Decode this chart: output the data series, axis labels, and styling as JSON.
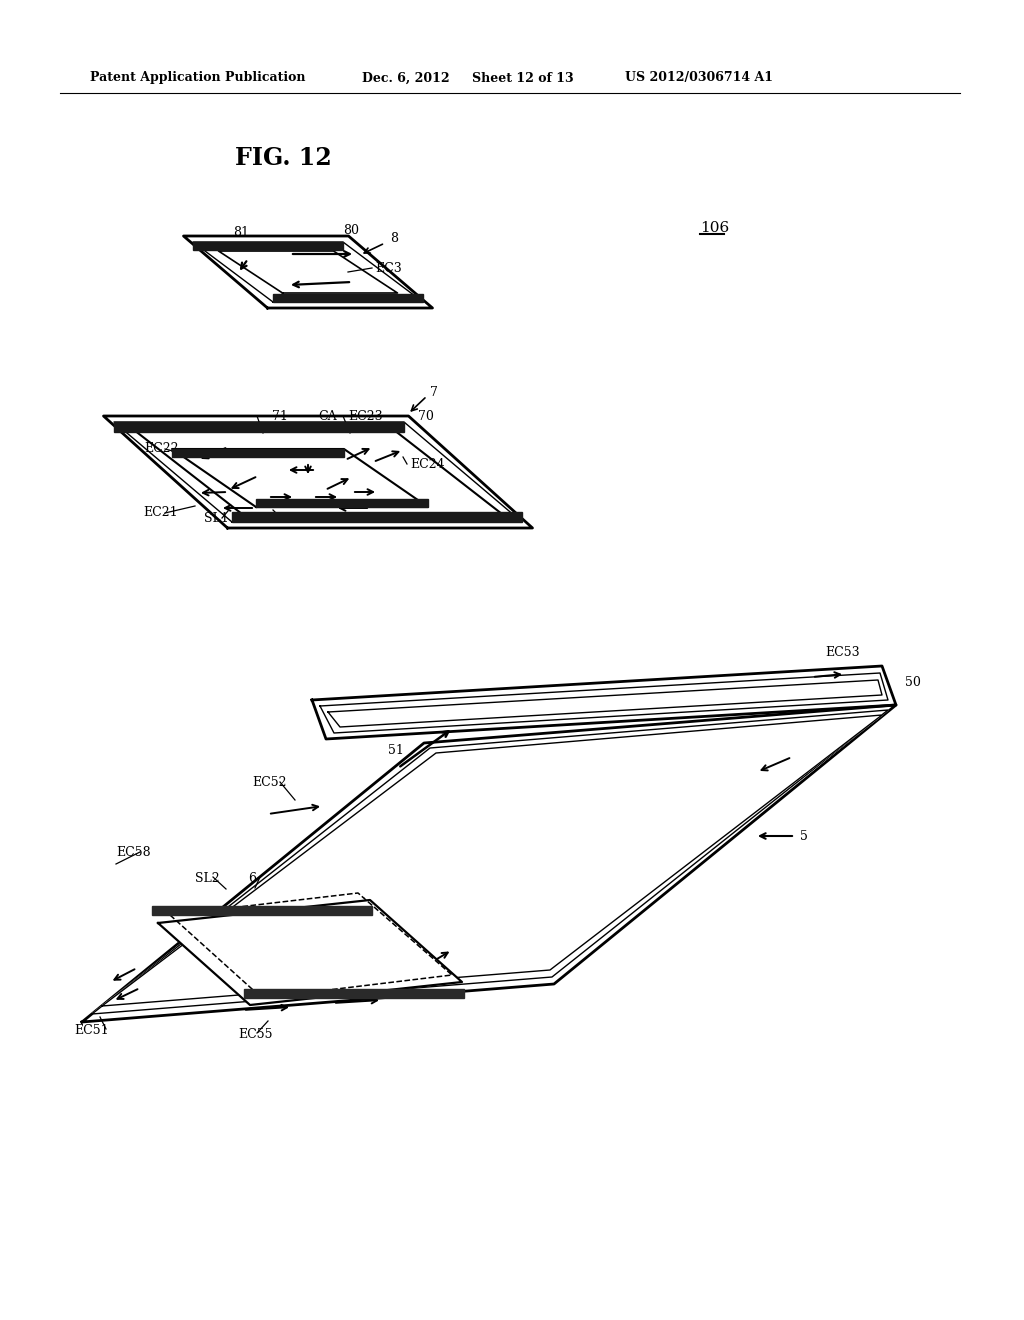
{
  "bg_color": "#ffffff",
  "header_text": "Patent Application Publication",
  "header_date": "Dec. 6, 2012",
  "header_sheet": "Sheet 12 of 13",
  "header_patent": "US 2012/0306714 A1",
  "fig_label": "FIG. 12",
  "ref_106": "106"
}
